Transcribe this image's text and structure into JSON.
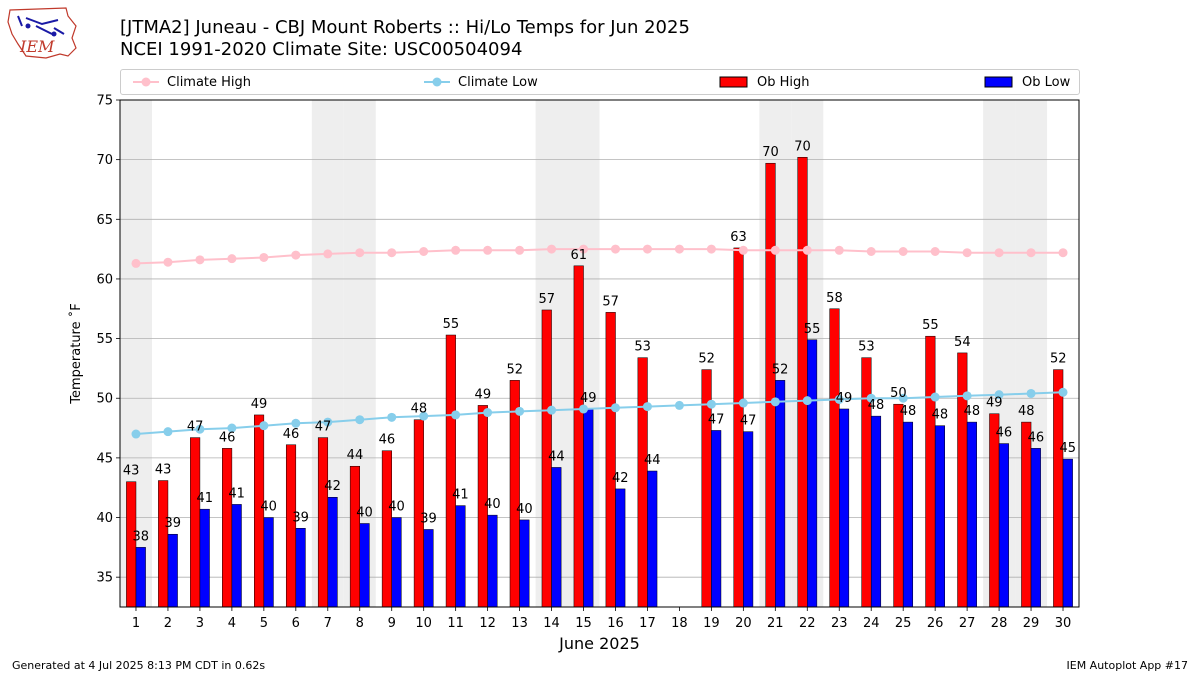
{
  "header": {
    "title_line1": "[JTMA2] Juneau - CBJ Mount Roberts :: Hi/Lo Temps for Jun 2025",
    "title_line2": "NCEI 1991-2020 Climate Site: USC00504094",
    "logo_text": "IEM"
  },
  "footer": {
    "left": "Generated at 4 Jul 2025 8:13 PM CDT in 0.62s",
    "right": "IEM Autoplot App #17"
  },
  "colors": {
    "climate_high": "#ffc0cb",
    "climate_low": "#87ceeb",
    "ob_high": "#ff0000",
    "ob_low": "#0000ff",
    "weekend_shade": "#eeeeee",
    "grid": "#b0b0b0"
  },
  "chart_data": {
    "type": "bar",
    "xlabel": "June 2025",
    "ylabel": "Temperature ˚F",
    "ylim": [
      32.5,
      75
    ],
    "yticks": [
      35,
      40,
      45,
      50,
      55,
      60,
      65,
      70,
      75
    ],
    "grid": "horizontal",
    "legend_position": "top",
    "categories": [
      "1",
      "2",
      "3",
      "4",
      "5",
      "6",
      "7",
      "8",
      "9",
      "10",
      "11",
      "12",
      "13",
      "14",
      "15",
      "16",
      "17",
      "18",
      "19",
      "20",
      "21",
      "22",
      "23",
      "24",
      "25",
      "26",
      "27",
      "28",
      "29",
      "30"
    ],
    "shaded_days": [
      1,
      7,
      8,
      14,
      15,
      21,
      22,
      28,
      29
    ],
    "series": [
      {
        "name": "Climate High",
        "kind": "line",
        "values": [
          61.3,
          61.4,
          61.6,
          61.7,
          61.8,
          62.0,
          62.1,
          62.2,
          62.2,
          62.3,
          62.4,
          62.4,
          62.4,
          62.5,
          62.5,
          62.5,
          62.5,
          62.5,
          62.5,
          62.4,
          62.4,
          62.4,
          62.4,
          62.3,
          62.3,
          62.3,
          62.2,
          62.2,
          62.2,
          62.2
        ]
      },
      {
        "name": "Climate Low",
        "kind": "line",
        "values": [
          47.0,
          47.2,
          47.4,
          47.5,
          47.7,
          47.9,
          48.0,
          48.2,
          48.4,
          48.5,
          48.6,
          48.8,
          48.9,
          49.0,
          49.1,
          49.2,
          49.3,
          49.4,
          49.5,
          49.6,
          49.7,
          49.8,
          49.9,
          50.0,
          50.0,
          50.1,
          50.2,
          50.3,
          50.4,
          50.5
        ]
      },
      {
        "name": "Ob High",
        "kind": "bar",
        "values": [
          43,
          43.1,
          46.7,
          45.8,
          48.6,
          46.1,
          46.7,
          44.3,
          45.6,
          48.2,
          55.3,
          49.4,
          51.5,
          57.4,
          61.1,
          57.2,
          53.4,
          null,
          52.4,
          62.6,
          69.7,
          70.2,
          57.5,
          53.4,
          49.5,
          55.2,
          53.8,
          48.7,
          48,
          52.4
        ],
        "labels": [
          "43",
          "43",
          "47",
          "46",
          "49",
          "46",
          "47",
          "44",
          "46",
          "48",
          "55",
          "49",
          "52",
          "57",
          "61",
          "57",
          "53",
          "",
          "52",
          "63",
          "70",
          "70",
          "58",
          "53",
          "50",
          "55",
          "54",
          "49",
          "48",
          "52"
        ]
      },
      {
        "name": "Ob Low",
        "kind": "bar",
        "values": [
          37.5,
          38.6,
          40.7,
          41.1,
          40,
          39.1,
          41.7,
          39.5,
          40,
          39,
          41,
          40.2,
          39.8,
          44.2,
          49.1,
          42.4,
          43.9,
          null,
          47.3,
          47.2,
          51.5,
          54.9,
          49.1,
          48.5,
          48,
          47.7,
          48,
          46.2,
          45.8,
          44.9
        ],
        "labels": [
          "38",
          "39",
          "41",
          "41",
          "40",
          "39",
          "42",
          "40",
          "40",
          "39",
          "41",
          "40",
          "40",
          "44",
          "49",
          "42",
          "44",
          "",
          "47",
          "47",
          "52",
          "55",
          "49",
          "48",
          "48",
          "48",
          "48",
          "46",
          "46",
          "45"
        ]
      }
    ]
  }
}
